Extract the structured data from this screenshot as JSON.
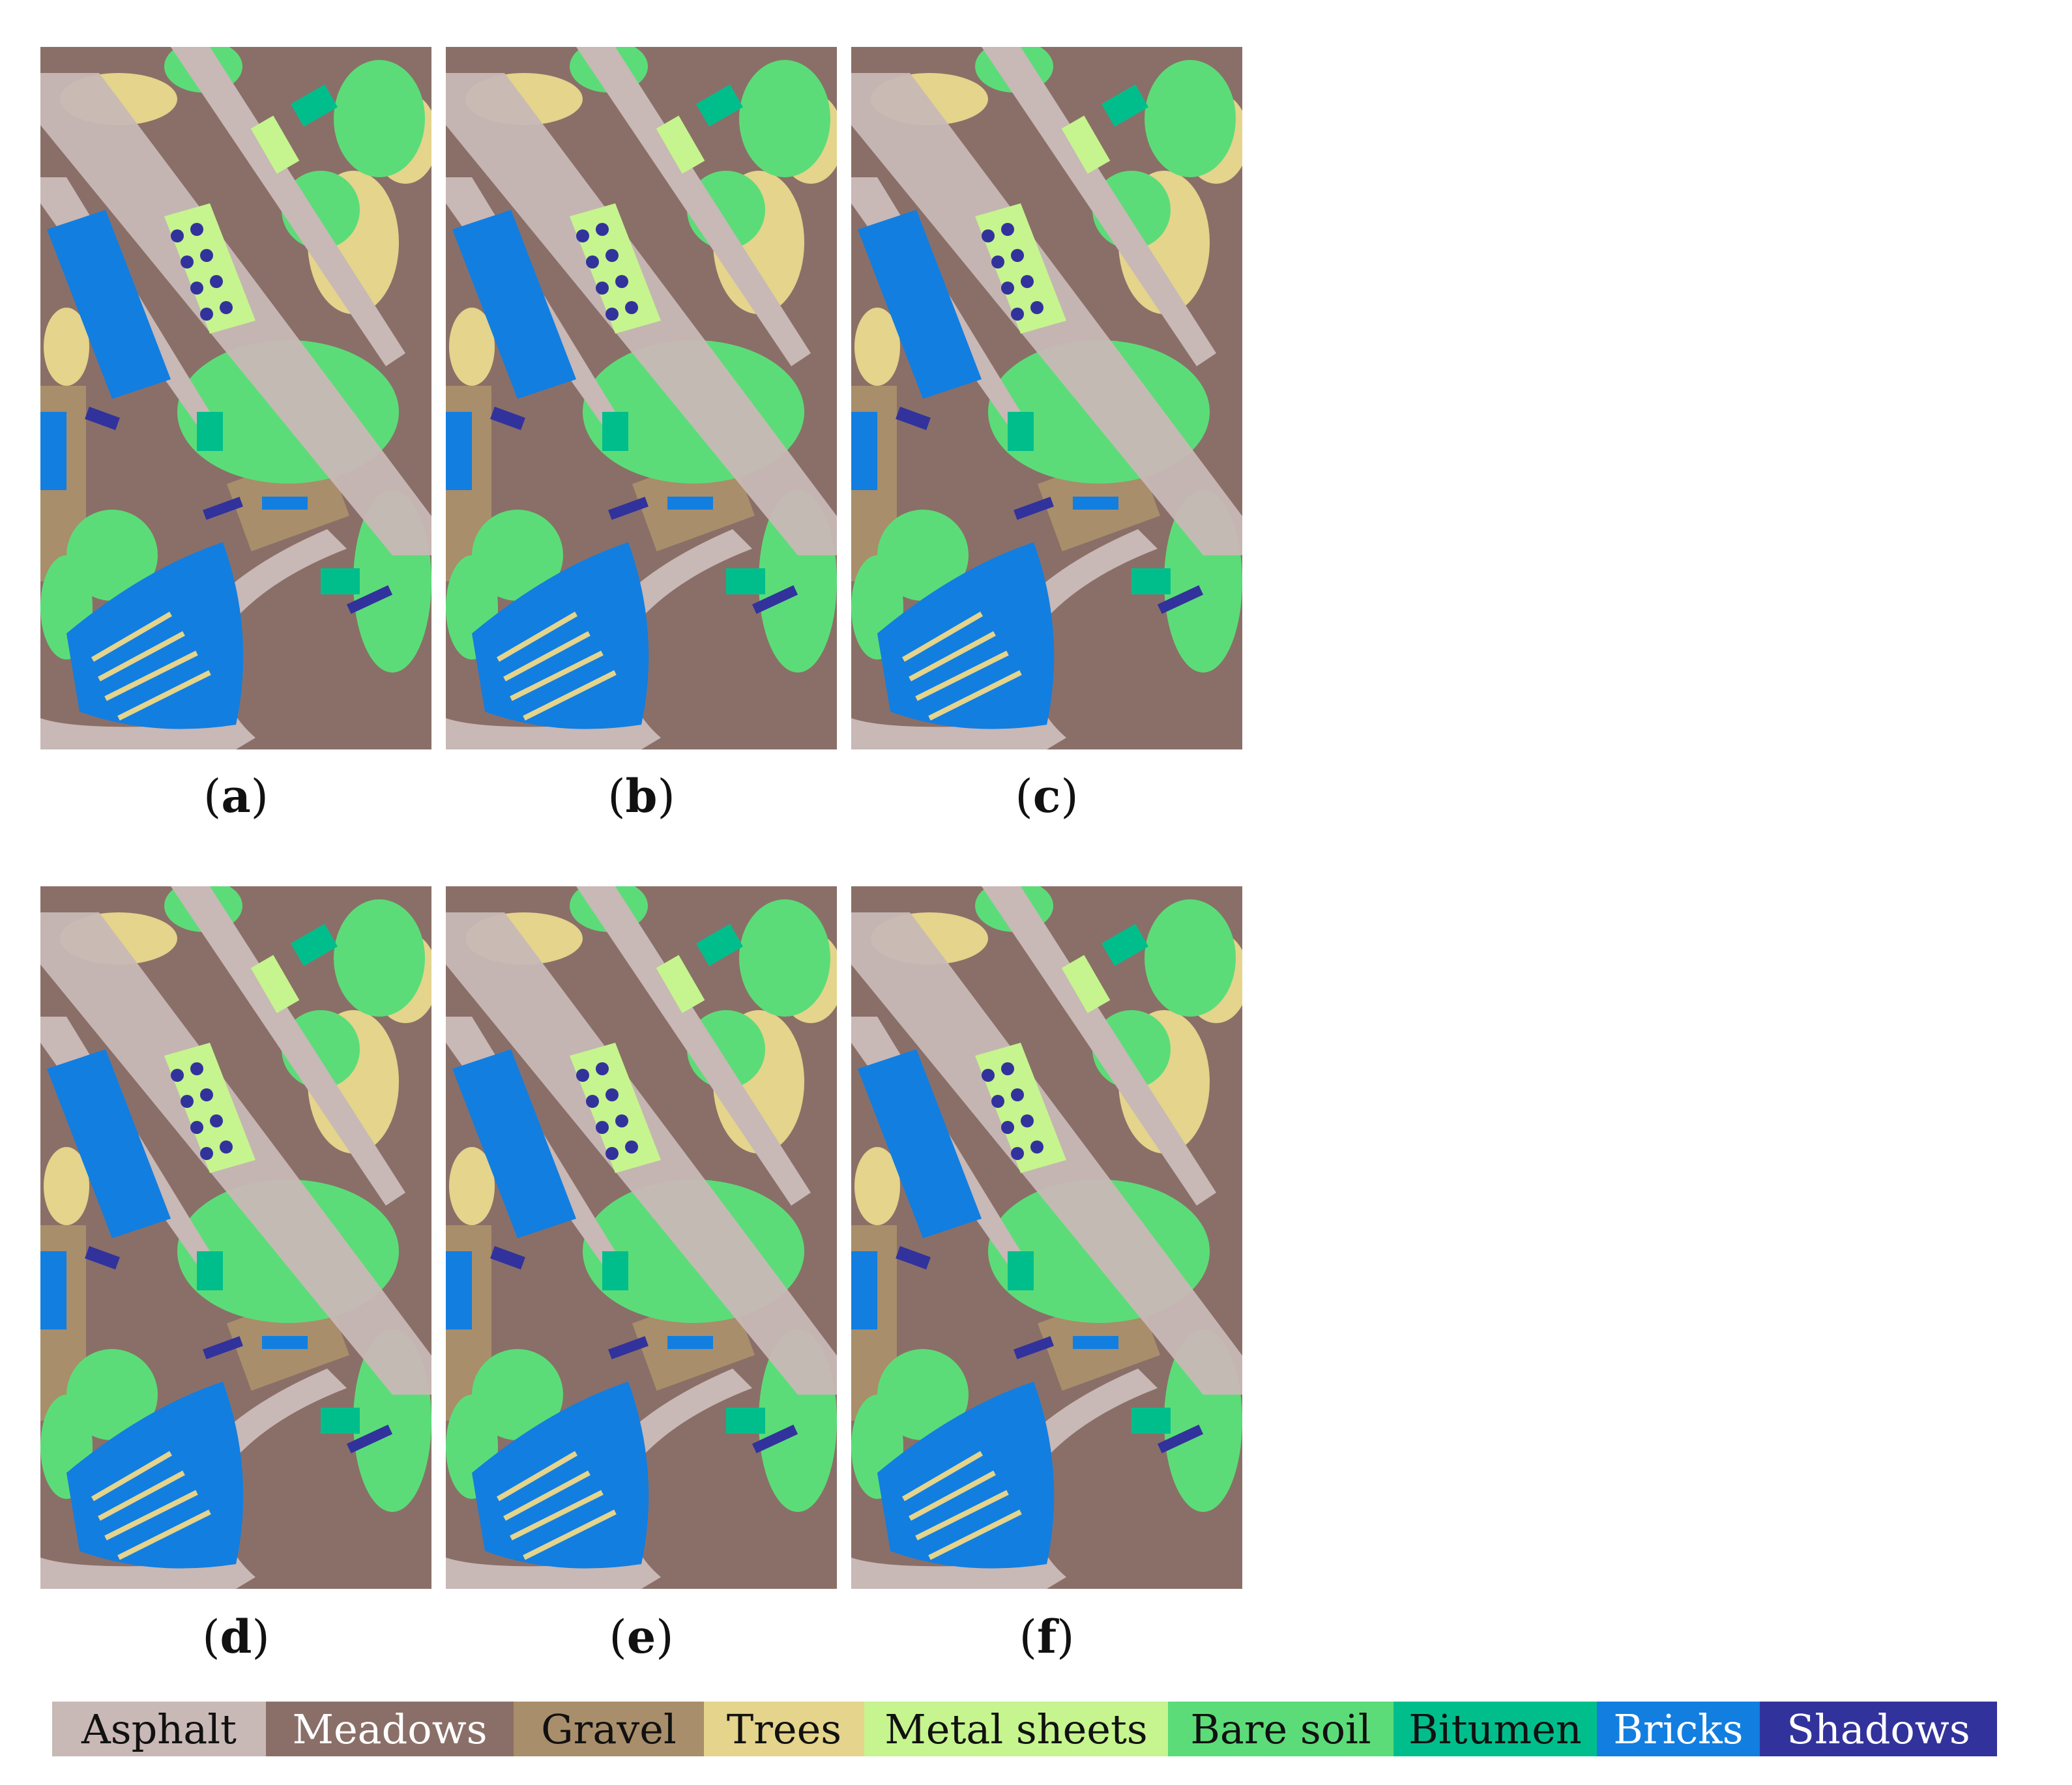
{
  "panels": [
    {
      "id": "a",
      "caption_label": "a"
    },
    {
      "id": "b",
      "caption_label": "b"
    },
    {
      "id": "c",
      "caption_label": "c"
    },
    {
      "id": "d",
      "caption_label": "d"
    },
    {
      "id": "e",
      "caption_label": "e"
    },
    {
      "id": "f",
      "caption_label": "f"
    }
  ],
  "legend": {
    "items": [
      {
        "label": "Asphalt",
        "color": "#c8b8b6",
        "text_color": "#111111"
      },
      {
        "label": "Meadows",
        "color": "#8a6f68",
        "text_color": "#ffffff"
      },
      {
        "label": "Gravel",
        "color": "#a88e6a",
        "text_color": "#111111"
      },
      {
        "label": "Trees",
        "color": "#e4d48c",
        "text_color": "#111111"
      },
      {
        "label": "Metal sheets",
        "color": "#c6f48e",
        "text_color": "#111111"
      },
      {
        "label": "Bare soil",
        "color": "#5cdc78",
        "text_color": "#111111"
      },
      {
        "label": "Bitumen",
        "color": "#00be8c",
        "text_color": "#111111"
      },
      {
        "label": "Bricks",
        "color": "#127ee0",
        "text_color": "#ffffff"
      },
      {
        "label": "Shadows",
        "color": "#32329c",
        "text_color": "#ffffff"
      }
    ]
  }
}
